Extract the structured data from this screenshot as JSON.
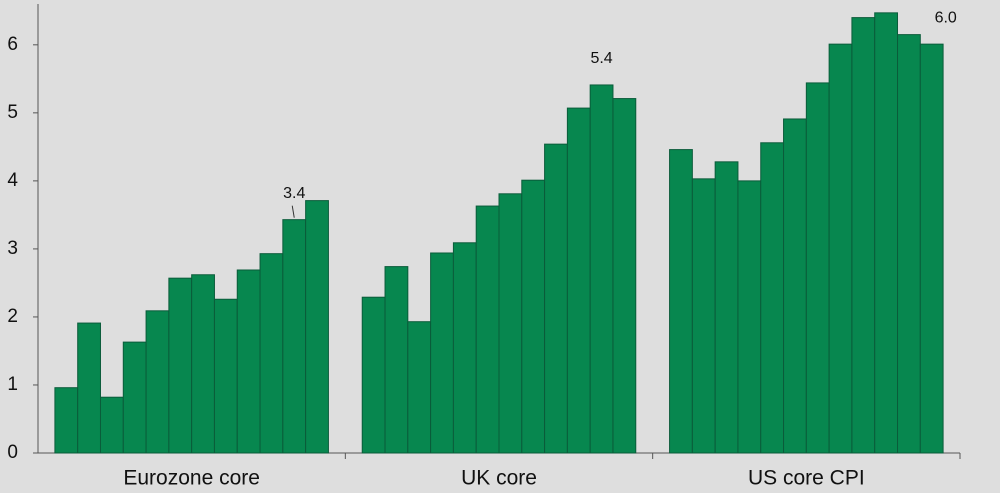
{
  "chart_data": {
    "type": "grouped-bar",
    "groups": [
      {
        "name": "Eurozone core",
        "values": [
          0.96,
          1.91,
          0.82,
          1.63,
          2.09,
          2.57,
          2.62,
          2.26,
          2.69,
          2.93,
          3.43,
          3.71
        ],
        "value_labels": [
          null,
          null,
          null,
          null,
          null,
          null,
          null,
          null,
          null,
          null,
          "3.4",
          null
        ]
      },
      {
        "name": "UK core",
        "values": [
          2.29,
          2.74,
          1.93,
          2.94,
          3.09,
          3.63,
          3.81,
          4.01,
          4.54,
          5.07,
          5.41,
          5.21
        ],
        "value_labels": [
          null,
          null,
          null,
          null,
          null,
          null,
          null,
          null,
          null,
          null,
          "5.4",
          null
        ]
      },
      {
        "name": "US core CPI",
        "values": [
          4.46,
          4.03,
          4.28,
          4.0,
          4.56,
          4.91,
          5.44,
          6.01,
          6.4,
          6.47,
          6.15,
          6.01
        ],
        "value_labels": [
          null,
          null,
          null,
          null,
          null,
          null,
          null,
          null,
          null,
          null,
          null,
          "6.0"
        ]
      }
    ],
    "color": "#07874f",
    "ylim": [
      0,
      6.6
    ],
    "yticks": [
      0,
      1,
      2,
      3,
      4,
      5,
      6
    ]
  }
}
